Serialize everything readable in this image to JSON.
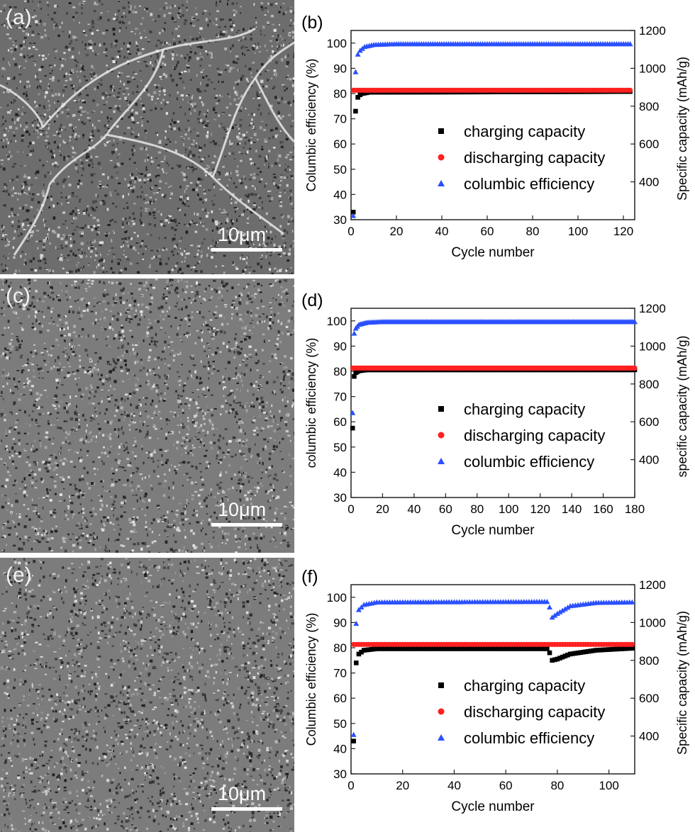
{
  "sem_images": [
    {
      "letter": "(a)",
      "scale_label": "10μm",
      "cracked": true
    },
    {
      "letter": "(c)",
      "scale_label": "10μm",
      "cracked": false
    },
    {
      "letter": "(e)",
      "scale_label": "10μm",
      "cracked": false
    }
  ],
  "colors": {
    "charging": "#000000",
    "discharging": "#ff2020",
    "efficiency": "#2b50ff"
  },
  "chart_data": [
    {
      "type": "scatter",
      "panel_letter": "(b)",
      "xlabel": "Cycle number",
      "ylabel_left": "Columbic efficiency (%)",
      "ylabel_right": "Specific capacity (mAh/g)",
      "xlim": [
        0,
        125
      ],
      "xticks": [
        0,
        20,
        40,
        60,
        80,
        100,
        120
      ],
      "ylim_left": [
        30,
        105
      ],
      "yticks_left": [
        30,
        40,
        50,
        60,
        70,
        80,
        90,
        100
      ],
      "ylim_right": [
        200,
        1200
      ],
      "yticks_right": [
        400,
        600,
        800,
        1000,
        1200
      ],
      "n_cycles": 123,
      "legend": [
        "charging capacity",
        "discharging capacity",
        "columbic efficiency"
      ],
      "legend_position": "center",
      "series": [
        {
          "name": "charging capacity",
          "axis": "left",
          "marker": "square",
          "points": [
            [
              1,
              33
            ],
            [
              2,
              73
            ],
            [
              3,
              78.5
            ],
            [
              4,
              79.5
            ],
            [
              5,
              80
            ],
            [
              8,
              80.5
            ],
            [
              123,
              80.8
            ]
          ]
        },
        {
          "name": "discharging capacity",
          "axis": "left",
          "marker": "circle",
          "points": [
            [
              1,
              81.3
            ],
            [
              123,
              81.3
            ]
          ]
        },
        {
          "name": "columbic efficiency",
          "axis": "left",
          "marker": "triangle",
          "points": [
            [
              1,
              31.5
            ],
            [
              2,
              88.5
            ],
            [
              3,
              95.5
            ],
            [
              4,
              97
            ],
            [
              6,
              98.5
            ],
            [
              10,
              99.3
            ],
            [
              20,
              99.6
            ],
            [
              123,
              99.6
            ]
          ]
        }
      ]
    },
    {
      "type": "scatter",
      "panel_letter": "(d)",
      "xlabel": "Cycle number",
      "ylabel_left": "columbic efficiency (%)",
      "ylabel_right": "specific capacity (mAh/g)",
      "xlim": [
        0,
        180
      ],
      "xticks": [
        0,
        20,
        40,
        60,
        80,
        100,
        120,
        140,
        160,
        180
      ],
      "ylim_left": [
        30,
        105
      ],
      "yticks_left": [
        30,
        40,
        50,
        60,
        70,
        80,
        90,
        100
      ],
      "ylim_right": [
        200,
        1200
      ],
      "yticks_right": [
        400,
        600,
        800,
        1000,
        1200
      ],
      "n_cycles": 180,
      "legend": [
        "charging capacity",
        "discharging capacity",
        "columbic efficiency"
      ],
      "legend_position": "center",
      "series": [
        {
          "name": "charging capacity",
          "axis": "left",
          "marker": "square",
          "points": [
            [
              1,
              57.5
            ],
            [
              2,
              78
            ],
            [
              3,
              79.5
            ],
            [
              5,
              80.2
            ],
            [
              10,
              80.6
            ],
            [
              180,
              80.6
            ]
          ]
        },
        {
          "name": "discharging capacity",
          "axis": "left",
          "marker": "circle",
          "points": [
            [
              1,
              81.3
            ],
            [
              180,
              81.3
            ]
          ]
        },
        {
          "name": "columbic efficiency",
          "axis": "left",
          "marker": "triangle",
          "points": [
            [
              1,
              63.5
            ],
            [
              2,
              95
            ],
            [
              3,
              97
            ],
            [
              5,
              98.5
            ],
            [
              10,
              99.3
            ],
            [
              20,
              99.6
            ],
            [
              180,
              99.6
            ]
          ]
        }
      ]
    },
    {
      "type": "scatter",
      "panel_letter": "(f)",
      "xlabel": "Cycle number",
      "ylabel_left": "Columbic efficiency (%)",
      "ylabel_right": "Specific capacity (mAh/g)",
      "xlim": [
        0,
        110
      ],
      "xticks": [
        0,
        20,
        40,
        60,
        80,
        100
      ],
      "ylim_left": [
        30,
        105
      ],
      "yticks_left": [
        30,
        40,
        50,
        60,
        70,
        80,
        90,
        100
      ],
      "ylim_right": [
        200,
        1200
      ],
      "yticks_right": [
        400,
        600,
        800,
        1000,
        1200
      ],
      "n_cycles": 109,
      "legend": [
        "charging capacity",
        "discharging capacity",
        "columbic efficiency"
      ],
      "legend_position": "center",
      "series": [
        {
          "name": "charging capacity",
          "axis": "left",
          "marker": "square",
          "points": [
            [
              1,
              43
            ],
            [
              2,
              74
            ],
            [
              3,
              77.5
            ],
            [
              5,
              79
            ],
            [
              10,
              79.6
            ],
            [
              76,
              79.6
            ],
            [
              77,
              78
            ],
            [
              78,
              75
            ],
            [
              80,
              75.5
            ],
            [
              85,
              77.5
            ],
            [
              95,
              79
            ],
            [
              109,
              79.8
            ]
          ]
        },
        {
          "name": "discharging capacity",
          "axis": "left",
          "marker": "circle",
          "points": [
            [
              1,
              81.3
            ],
            [
              109,
              81.3
            ]
          ]
        },
        {
          "name": "columbic efficiency",
          "axis": "left",
          "marker": "triangle",
          "points": [
            [
              1,
              45.5
            ],
            [
              2,
              89.5
            ],
            [
              3,
              95
            ],
            [
              5,
              97
            ],
            [
              10,
              98
            ],
            [
              76,
              98.2
            ],
            [
              77,
              96
            ],
            [
              78,
              92
            ],
            [
              80,
              93.5
            ],
            [
              85,
              96.5
            ],
            [
              95,
              97.8
            ],
            [
              109,
              98
            ]
          ]
        }
      ]
    }
  ]
}
